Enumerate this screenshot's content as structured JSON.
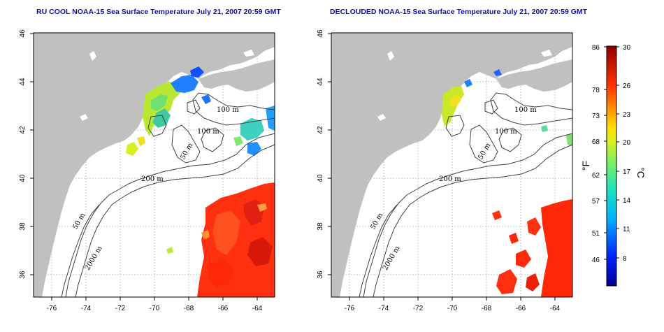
{
  "maps": [
    {
      "title": "RU COOL NOAA-15 Sea Surface Temperature July 21, 2007 20:59 GMT",
      "contour_labels": [
        "100 m",
        "100 m",
        "50 m",
        "200 m",
        "50 m",
        "2000 m"
      ],
      "x_ticks": [
        "-76",
        "-74",
        "-72",
        "-70",
        "-68",
        "-66",
        "-64"
      ],
      "y_ticks": [
        "46",
        "44",
        "42",
        "40",
        "38",
        "36"
      ]
    },
    {
      "title": "DECLOUDED NOAA-15 Sea Surface Temperature July 21, 2007 20:59 GMT",
      "contour_labels": [
        "100 m",
        "100 m",
        "50 m",
        "200 m",
        "50 m",
        "2000 m"
      ],
      "x_ticks": [
        "-76",
        "-74",
        "-72",
        "-70",
        "-68",
        "-66",
        "-64"
      ],
      "y_ticks": [
        "46",
        "44",
        "42",
        "40",
        "38",
        "36"
      ]
    }
  ],
  "colorbar": {
    "fahrenheit_labels": [
      "86",
      "78",
      "73",
      "68",
      "62",
      "57",
      "51",
      "46"
    ],
    "celsius_labels": [
      "30",
      "26",
      "23",
      "20",
      "17",
      "14",
      "11",
      "8"
    ],
    "fahrenheit_unit": "°F",
    "celsius_unit": "°C"
  },
  "colors": {
    "land": "#c0c0c0",
    "title": "#1010a8",
    "grid": "#b8b8b8"
  }
}
